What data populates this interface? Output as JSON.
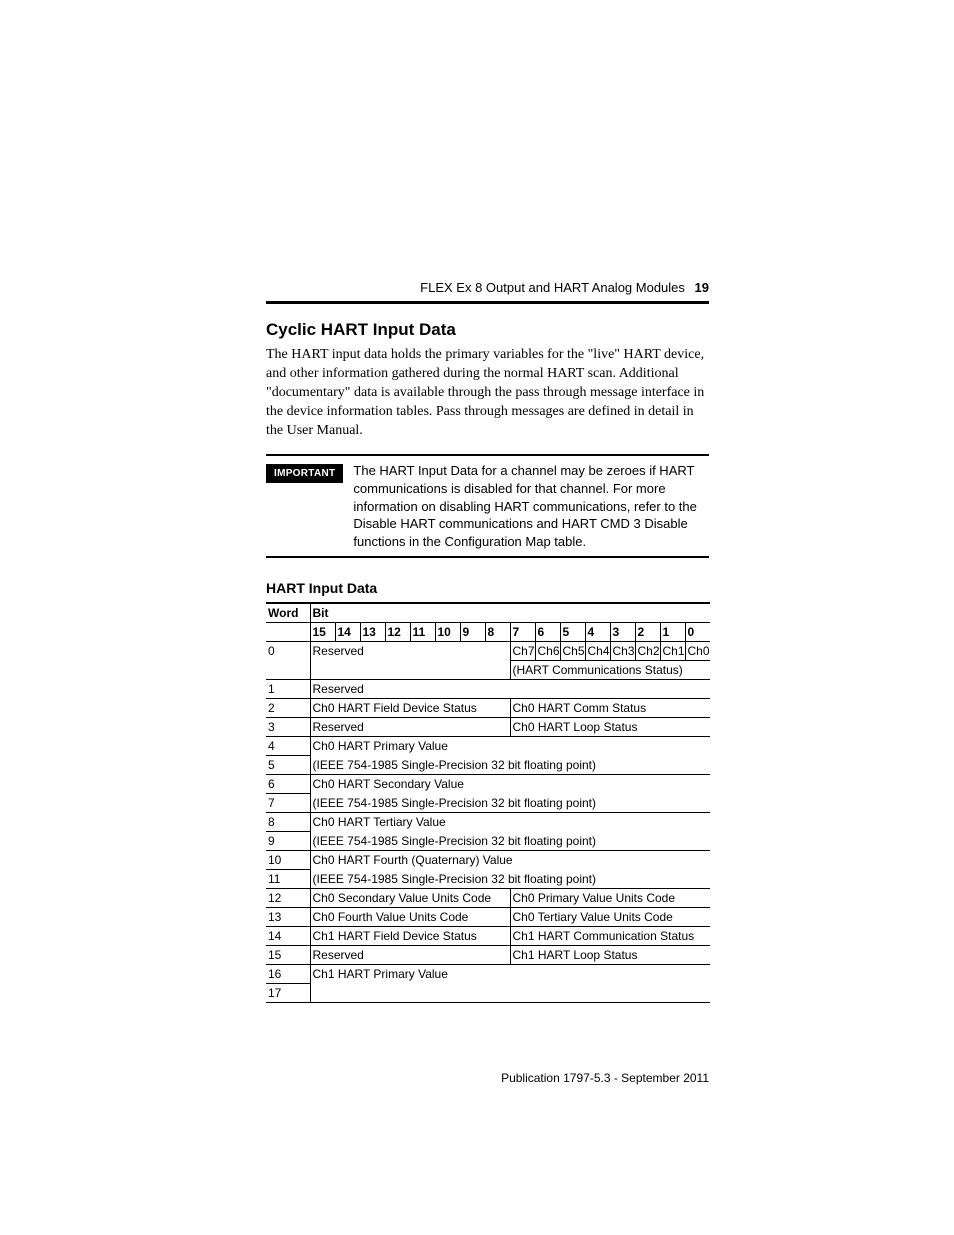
{
  "header": {
    "running_head": "FLEX Ex 8 Output and HART Analog Modules",
    "page_number": "19"
  },
  "section": {
    "title": "Cyclic HART Input Data",
    "paragraph": "The HART input data holds the primary variables for the \"live\" HART device, and other information gathered during the normal HART scan. Additional \"documentary\" data is available through the pass through message interface in the device information tables.  Pass through messages are defined in detail in the User Manual."
  },
  "important": {
    "badge": "IMPORTANT",
    "text": "The HART Input Data for a channel may be zeroes if HART communications is disabled for that channel. For more information on disabling HART communications, refer to the Disable HART communications and HART CMD 3 Disable functions in the Configuration Map table."
  },
  "table": {
    "title": "HART Input Data",
    "header": {
      "word": "Word",
      "bit": "Bit",
      "bits": [
        "15",
        "14",
        "13",
        "12",
        "11",
        "10",
        "9",
        "8",
        "7",
        "6",
        "5",
        "4",
        "3",
        "2",
        "1",
        "0"
      ]
    },
    "rows": {
      "r0a": {
        "word": "0",
        "hi": "Reserved",
        "ch": [
          "Ch7",
          "Ch6",
          "Ch5",
          "Ch4",
          "Ch3",
          "Ch2",
          "Ch1",
          "Ch0"
        ]
      },
      "r0b": {
        "lo": "(HART Communications Status)"
      },
      "r1": {
        "word": "1",
        "full": "Reserved"
      },
      "r2": {
        "word": "2",
        "hi": "Ch0 HART Field Device Status",
        "lo": "Ch0 HART Comm Status"
      },
      "r3": {
        "word": "3",
        "hi": "Reserved",
        "lo": "Ch0 HART Loop Status"
      },
      "r4": {
        "word": "4",
        "full": "Ch0 HART Primary Value"
      },
      "r5": {
        "word": "5",
        "full": "(IEEE 754-1985 Single-Precision 32 bit floating point)"
      },
      "r6": {
        "word": "6",
        "full": "Ch0 HART Secondary Value"
      },
      "r7": {
        "word": "7",
        "full": "(IEEE 754-1985 Single-Precision 32 bit floating point)"
      },
      "r8": {
        "word": "8",
        "full": "Ch0 HART Tertiary Value"
      },
      "r9": {
        "word": "9",
        "full": "(IEEE 754-1985 Single-Precision 32 bit floating point)"
      },
      "r10": {
        "word": "10",
        "full": "Ch0 HART Fourth (Quaternary) Value"
      },
      "r11": {
        "word": "11",
        "full": "(IEEE 754-1985 Single-Precision 32 bit floating point)"
      },
      "r12": {
        "word": "12",
        "hi": "Ch0 Secondary Value Units Code",
        "lo": "Ch0 Primary Value Units Code"
      },
      "r13": {
        "word": "13",
        "hi": "Ch0 Fourth Value Units Code",
        "lo": "Ch0 Tertiary Value Units Code"
      },
      "r14": {
        "word": "14",
        "hi": "Ch1 HART Field Device Status",
        "lo": "Ch1 HART Communication Status"
      },
      "r15": {
        "word": "15",
        "hi": "Reserved",
        "lo": "Ch1 HART Loop Status"
      },
      "r16": {
        "word": "16",
        "full": "Ch1 HART Primary Value"
      },
      "r17": {
        "word": "17",
        "full": ""
      }
    }
  },
  "footer": {
    "publication_label": "Publication",
    "publication_value": "1797-5.3 - September 2011"
  }
}
